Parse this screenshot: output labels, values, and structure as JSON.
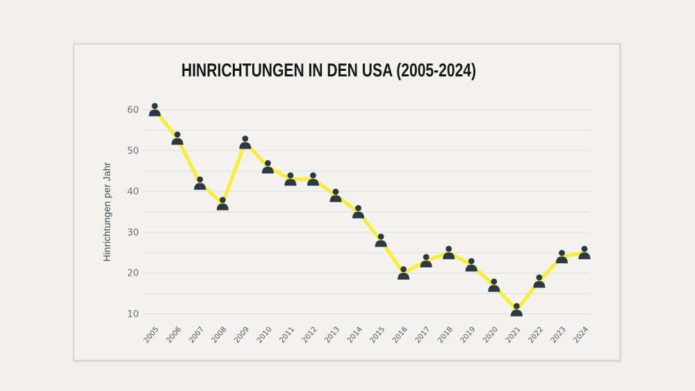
{
  "page": {
    "background": "#f1efec"
  },
  "card": {
    "background": "#f3f2ef",
    "border_color": "#d7d5d1"
  },
  "chart": {
    "title": "HINRICHTUNGEN IN DEN USA (2005-2024)",
    "ylabel": "Hinrichtungen per Jahr"
  },
  "chart_data": {
    "type": "line",
    "title": "HINRICHTUNGEN IN DEN USA (2005-2024)",
    "xlabel": "",
    "ylabel": "Hinrichtungen per Jahr",
    "categories": [
      "2005",
      "2006",
      "2007",
      "2008",
      "2009",
      "2010",
      "2011",
      "2012",
      "2013",
      "2014",
      "2015",
      "2016",
      "2017",
      "2018",
      "2019",
      "2020",
      "2021",
      "2022",
      "2023",
      "2024"
    ],
    "values": [
      60,
      53,
      42,
      37,
      52,
      46,
      43,
      43,
      39,
      35,
      28,
      20,
      23,
      25,
      22,
      17,
      11,
      18,
      24,
      25
    ],
    "ylim": [
      10,
      60
    ],
    "yticks": [
      10,
      20,
      30,
      40,
      50,
      60
    ],
    "grid_step": 5,
    "grid": true,
    "legend": false,
    "line_color": "#f8ee35",
    "marker_color": "#2c3945",
    "gridline_color": "#e2e0db",
    "marker_style": "person-icon"
  }
}
